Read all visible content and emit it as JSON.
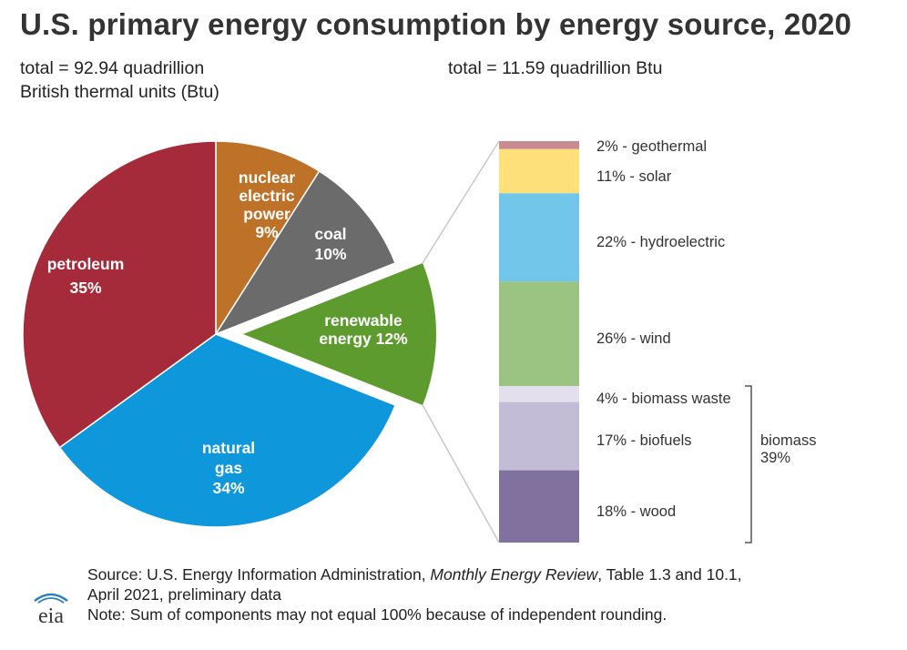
{
  "title": "U.S. primary energy consumption by energy source, 2020",
  "total_left": {
    "line1": "total = 92.94 quadrillion",
    "line2": "British thermal units (Btu)"
  },
  "total_right": "total = 11.59 quadrillion Btu",
  "chart_data": [
    {
      "type": "pie",
      "title": "U.S. primary energy consumption by energy source, 2020",
      "total": "92.94 quadrillion Btu",
      "slices": [
        {
          "name": "nuclear electric power",
          "label_lines": [
            "nuclear",
            "electric",
            "power",
            "9%"
          ],
          "value": 9,
          "color": "#bd7227"
        },
        {
          "name": "coal",
          "label_lines": [
            "coal",
            "10%"
          ],
          "value": 10,
          "color": "#6b6b6b"
        },
        {
          "name": "renewable energy",
          "label_lines": [
            "renewable",
            "energy 12%"
          ],
          "value": 12,
          "color": "#5d9b2f",
          "exploded": true
        },
        {
          "name": "natural gas",
          "label_lines": [
            "natural",
            "gas",
            "34%"
          ],
          "value": 34,
          "color": "#0f97dc"
        },
        {
          "name": "petroleum",
          "label_lines": [
            "petroleum",
            "35%"
          ],
          "value": 35,
          "color": "#a52a3a"
        }
      ]
    },
    {
      "type": "bar",
      "subtype": "stacked-100",
      "title": "renewable energy",
      "total": "11.59 quadrillion Btu",
      "segments": [
        {
          "name": "geothermal",
          "label": "2% - geothermal",
          "value": 2,
          "color": "#c98a92"
        },
        {
          "name": "solar",
          "label": "11% - solar",
          "value": 11,
          "color": "#fde07a"
        },
        {
          "name": "hydroelectric",
          "label": "22% - hydroelectric",
          "value": 22,
          "color": "#72c6ea"
        },
        {
          "name": "wind",
          "label": "26% - wind",
          "value": 26,
          "color": "#9bc483"
        },
        {
          "name": "biomass waste",
          "label": "4% - biomass waste",
          "value": 4,
          "color": "#e4dfec"
        },
        {
          "name": "biofuels",
          "label": "17% - biofuels",
          "value": 17,
          "color": "#c2bcd6"
        },
        {
          "name": "wood",
          "label": "18% - wood",
          "value": 18,
          "color": "#80719f"
        }
      ],
      "bracket": {
        "label_lines": [
          "biomass",
          "39%"
        ],
        "spans": [
          "biomass waste",
          "biofuels",
          "wood"
        ]
      }
    }
  ],
  "footer": {
    "source_prefix": "Source: U.S. Energy Information Administration, ",
    "source_italic": "Monthly Energy Review",
    "source_suffix": ", Table 1.3 and 10.1,",
    "line2": "April 2021, preliminary data",
    "note": "Note: Sum of components may not equal 100% because of independent rounding."
  },
  "logo": {
    "text": "eia",
    "icon": "eia-logo-icon"
  },
  "colors": {
    "connector": "#c8c8c8",
    "bracket": "#555555",
    "label_text": "#333333"
  }
}
